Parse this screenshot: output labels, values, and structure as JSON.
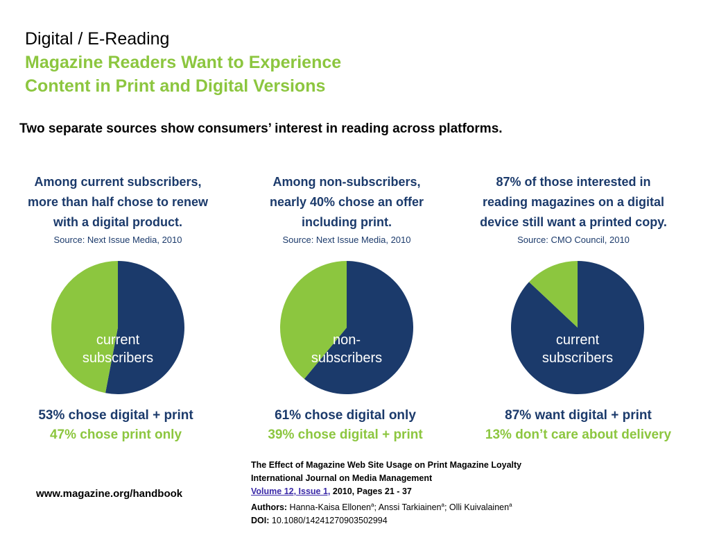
{
  "header": {
    "title": "Digital / E-Reading",
    "headline_line1": "Magazine Readers Want to Experience",
    "headline_line2": "Content in Print and Digital Versions",
    "subtitle": "Two separate sources show consumers’ interest in reading across platforms."
  },
  "panels": [
    {
      "heading_lines": [
        "Among current subscribers,",
        "more than half chose to renew",
        "with a digital product."
      ],
      "source": "Source: Next Issue Media, 2010",
      "result_primary": "53% chose digital + print",
      "result_secondary": "47% chose print only"
    },
    {
      "heading_lines": [
        "Among non-subscribers,",
        "nearly 40% chose an offer",
        "including print."
      ],
      "source": "Source: Next Issue Media, 2010",
      "result_primary": "61% chose digital only",
      "result_secondary": "39% chose digital + print"
    },
    {
      "heading_lines": [
        "87% of those interested in",
        "reading magazines on a digital",
        "device still want a printed copy."
      ],
      "source": "Source: CMO Council, 2010",
      "result_primary": "87% want digital + print",
      "result_secondary": "13% don’t care about delivery"
    }
  ],
  "chart_data": [
    {
      "type": "pie",
      "center_label": [
        "current",
        "subscribers"
      ],
      "slices": [
        {
          "label": "digital + print",
          "value": 53,
          "color": "#1b3a6b"
        },
        {
          "label": "print only",
          "value": 47,
          "color": "#8cc63f"
        }
      ]
    },
    {
      "type": "pie",
      "center_label": [
        "non-",
        "subscribers"
      ],
      "slices": [
        {
          "label": "digital only",
          "value": 61,
          "color": "#1b3a6b"
        },
        {
          "label": "digital + print",
          "value": 39,
          "color": "#8cc63f"
        }
      ]
    },
    {
      "type": "pie",
      "center_label": [
        "current",
        "subscribers"
      ],
      "slices": [
        {
          "label": "digital + print",
          "value": 87,
          "color": "#1b3a6b"
        },
        {
          "label": "don’t care about delivery",
          "value": 13,
          "color": "#8cc63f"
        }
      ]
    }
  ],
  "footer": {
    "url": "www.magazine.org/handbook",
    "citation": {
      "article_title": "The Effect of Magazine Web Site Usage on Print Magazine Loyalty",
      "journal": "International Journal on Media Management",
      "volume_link": "Volume 12, Issue 1,",
      "pages": " 2010, Pages 21 - 37",
      "authors_label": "Authors:",
      "author1": " Hanna-Kaisa Ellonen",
      "author2": "; Anssi Tarkiainen",
      "author3": "; Olli Kuivalainen",
      "affiliation_mark": "a",
      "doi_label": "DOI:",
      "doi": " 10.1080/14241270903502994"
    }
  }
}
